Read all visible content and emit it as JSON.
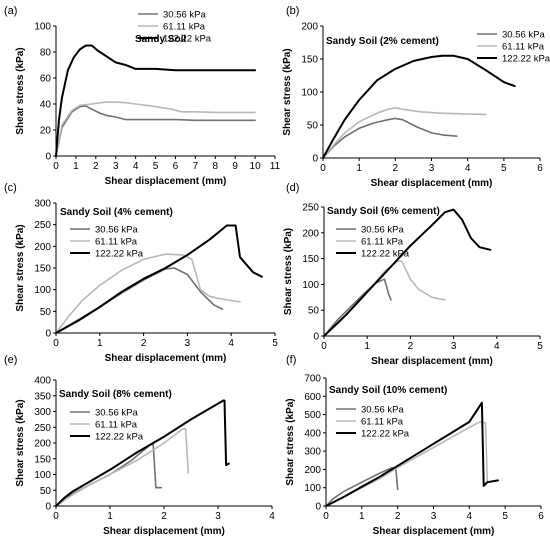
{
  "chart_data": [
    {
      "panel": "(a)",
      "type": "line",
      "title": "Sandy Soil",
      "xlabel": "Shear displacement (mm)",
      "ylabel": "Shear stress (kPa)",
      "xlim": [
        0,
        11
      ],
      "ylim": [
        0,
        100
      ],
      "xticks": [
        0,
        1,
        2,
        3,
        4,
        5,
        6,
        7,
        8,
        9,
        10,
        11
      ],
      "yticks": [
        0,
        20,
        40,
        60,
        80,
        100
      ],
      "legend_position": "top-right",
      "series": [
        {
          "name": "30.56 kPa",
          "color": "#707070",
          "x": [
            0,
            0.3,
            0.8,
            1.2,
            1.5,
            1.8,
            2.2,
            2.6,
            3,
            3.5,
            4,
            5,
            6,
            7,
            8,
            9,
            10
          ],
          "y": [
            0,
            22,
            34,
            38,
            38.5,
            36,
            33,
            31,
            30,
            28,
            28,
            28,
            28,
            27.5,
            27.5,
            27.5,
            27.5
          ]
        },
        {
          "name": "61.11 kPa",
          "color": "#b8b8b8",
          "x": [
            0,
            0.3,
            0.8,
            1.2,
            1.8,
            2.5,
            3,
            3.5,
            4,
            5,
            5.8,
            6.3,
            7,
            8,
            9,
            10
          ],
          "y": [
            0,
            24,
            35,
            39,
            40,
            41.5,
            41.5,
            41,
            40,
            38,
            36,
            34,
            34,
            33.5,
            33.5,
            33.5
          ]
        },
        {
          "name": "122.22 kPa",
          "color": "#000000",
          "x": [
            0,
            0.15,
            0.3,
            0.6,
            0.9,
            1.2,
            1.5,
            1.8,
            2.1,
            2.5,
            3,
            3.5,
            4,
            5,
            6,
            7,
            8,
            9,
            10
          ],
          "y": [
            0,
            28,
            45,
            66,
            76,
            82,
            85,
            85,
            81,
            77,
            72,
            70,
            67,
            67,
            66,
            66,
            66,
            66,
            66
          ]
        }
      ]
    },
    {
      "panel": "(b)",
      "type": "line",
      "title": "Sandy Soil  (2% cement)",
      "xlabel": "Shear displacement (mm)",
      "ylabel": "Shear stress (kPa)",
      "xlim": [
        0,
        6
      ],
      "ylim": [
        0,
        200
      ],
      "xticks": [
        0,
        1,
        2,
        3,
        4,
        5,
        6
      ],
      "yticks": [
        0,
        50,
        100,
        150,
        200
      ],
      "legend_position": "top-right",
      "series": [
        {
          "name": "30.56 kPa",
          "color": "#707070",
          "x": [
            0,
            0.3,
            0.6,
            1,
            1.4,
            1.8,
            2,
            2.2,
            2.6,
            3,
            3.3,
            3.7
          ],
          "y": [
            0,
            18,
            32,
            45,
            53,
            58,
            60,
            58,
            47,
            38,
            35,
            33
          ]
        },
        {
          "name": "61.11 kPa",
          "color": "#b8b8b8",
          "x": [
            0,
            0.3,
            0.6,
            1,
            1.5,
            1.8,
            2,
            2.3,
            2.7,
            3.2,
            3.8,
            4.5
          ],
          "y": [
            0,
            20,
            38,
            55,
            68,
            74,
            76,
            73,
            70,
            68,
            67,
            66
          ]
        },
        {
          "name": "122.22 kPa",
          "color": "#000000",
          "x": [
            0,
            0.3,
            0.6,
            1,
            1.5,
            2,
            2.5,
            3,
            3.3,
            3.6,
            4,
            4.5,
            5,
            5.3
          ],
          "y": [
            0,
            30,
            58,
            88,
            118,
            135,
            147,
            153,
            155,
            155,
            150,
            133,
            115,
            109
          ]
        }
      ]
    },
    {
      "panel": "(c)",
      "type": "line",
      "title": "Sandy Soil  (4% cement)",
      "xlabel": "Shear displacement (mm)",
      "ylabel": "Shear stress (kPa)",
      "xlim": [
        0,
        5
      ],
      "ylim": [
        0,
        300
      ],
      "xticks": [
        0,
        1,
        2,
        3,
        4,
        5
      ],
      "yticks": [
        0,
        50,
        100,
        150,
        200,
        250,
        300
      ],
      "legend_position": "top-left",
      "series": [
        {
          "name": "30.56 kPa",
          "color": "#707070",
          "x": [
            0,
            0.5,
            1,
            1.5,
            2,
            2.5,
            2.7,
            3,
            3.3,
            3.6,
            3.8
          ],
          "y": [
            0,
            30,
            60,
            92,
            122,
            148,
            150,
            135,
            95,
            65,
            55
          ]
        },
        {
          "name": "61.11 kPa",
          "color": "#b8b8b8",
          "x": [
            0,
            0.3,
            0.6,
            1,
            1.5,
            2,
            2.5,
            2.9,
            3.1,
            3.3,
            3.5,
            3.7,
            4,
            4.2
          ],
          "y": [
            0,
            40,
            75,
            110,
            145,
            170,
            182,
            180,
            170,
            100,
            85,
            80,
            75,
            72
          ]
        },
        {
          "name": "122.22 kPa",
          "color": "#000000",
          "x": [
            0,
            0.5,
            1,
            1.5,
            2,
            2.5,
            3,
            3.5,
            3.9,
            4.1,
            4.2,
            4.5,
            4.7
          ],
          "y": [
            0,
            28,
            60,
            95,
            125,
            150,
            180,
            215,
            248,
            248,
            175,
            140,
            130
          ]
        }
      ]
    },
    {
      "panel": "(d)",
      "type": "line",
      "title": "Sandy Soil  (6% cement)",
      "xlabel": "Shear displacement (mm)",
      "ylabel": "Shear stress (kPa)",
      "xlim": [
        0,
        5
      ],
      "ylim": [
        0,
        250
      ],
      "xticks": [
        0,
        1,
        2,
        3,
        4,
        5
      ],
      "yticks": [
        0,
        50,
        100,
        150,
        200,
        250
      ],
      "legend_position": "top-left",
      "series": [
        {
          "name": "30.56 kPa",
          "color": "#707070",
          "x": [
            0,
            0.3,
            0.6,
            0.9,
            1.2,
            1.4,
            1.5,
            1.55
          ],
          "y": [
            0,
            30,
            55,
            80,
            103,
            110,
            80,
            70
          ]
        },
        {
          "name": "61.11 kPa",
          "color": "#b8b8b8",
          "x": [
            0,
            0.5,
            1,
            1.4,
            1.7,
            1.8,
            2,
            2.2,
            2.5,
            2.8
          ],
          "y": [
            0,
            40,
            85,
            125,
            145,
            145,
            110,
            90,
            75,
            70
          ]
        },
        {
          "name": "122.22 kPa",
          "color": "#000000",
          "x": [
            0,
            0.5,
            1,
            1.5,
            2,
            2.5,
            2.8,
            3,
            3.2,
            3.4,
            3.6,
            3.85
          ],
          "y": [
            0,
            40,
            85,
            130,
            175,
            215,
            240,
            245,
            225,
            190,
            172,
            167
          ]
        }
      ]
    },
    {
      "panel": "(e)",
      "type": "line",
      "title": "Sandy Soil  (8% cement)",
      "xlabel": "Shear displacement (mm)",
      "ylabel": "Shear stress (kPa)",
      "xlim": [
        0,
        4
      ],
      "ylim": [
        0,
        400
      ],
      "xticks": [
        0,
        1,
        2,
        3,
        4
      ],
      "yticks": [
        0,
        50,
        100,
        150,
        200,
        250,
        300,
        350,
        400
      ],
      "legend_position": "top-left",
      "series": [
        {
          "name": "30.56 kPa",
          "color": "#707070",
          "x": [
            0,
            0.3,
            0.6,
            1,
            1.4,
            1.75,
            1.8,
            1.85,
            1.95
          ],
          "y": [
            0,
            38,
            65,
            100,
            145,
            195,
            195,
            58,
            58
          ]
        },
        {
          "name": "61.11 kPa",
          "color": "#b8b8b8",
          "x": [
            0,
            0.3,
            0.6,
            1,
            1.5,
            2,
            2.35,
            2.4,
            2.45
          ],
          "y": [
            0,
            35,
            65,
            100,
            145,
            200,
            245,
            245,
            105
          ]
        },
        {
          "name": "122.22 kPa",
          "color": "#000000",
          "x": [
            0,
            0.15,
            0.3,
            0.6,
            1,
            1.5,
            2,
            2.5,
            3,
            3.1,
            3.12,
            3.15,
            3.2
          ],
          "y": [
            0,
            25,
            45,
            75,
            115,
            170,
            220,
            275,
            325,
            335,
            335,
            130,
            135
          ]
        }
      ]
    },
    {
      "panel": "(f)",
      "type": "line",
      "title": "Sandy Soil  (10% cement)",
      "xlabel": "Shear displacement (mm)",
      "ylabel": "Shear stress (kPa)",
      "xlim": [
        0,
        6
      ],
      "ylim": [
        0,
        700
      ],
      "xticks": [
        0,
        1,
        2,
        3,
        4,
        5,
        6
      ],
      "yticks": [
        0,
        100,
        200,
        300,
        400,
        500,
        600,
        700
      ],
      "legend_position": "top-left",
      "series": [
        {
          "name": "30.56 kPa",
          "color": "#707070",
          "x": [
            0,
            0.2,
            0.5,
            1,
            1.5,
            1.85,
            1.95,
            2
          ],
          "y": [
            0,
            40,
            80,
            130,
            180,
            210,
            200,
            90
          ]
        },
        {
          "name": "61.11 kPa",
          "color": "#b8b8b8",
          "x": [
            0,
            0.5,
            1,
            1.5,
            2,
            2.5,
            3,
            3.5,
            4,
            4.3,
            4.45,
            4.5
          ],
          "y": [
            0,
            50,
            100,
            150,
            210,
            265,
            320,
            375,
            430,
            460,
            455,
            130
          ]
        },
        {
          "name": "122.22 kPa",
          "color": "#000000",
          "x": [
            0,
            0.5,
            1,
            1.5,
            2,
            2.5,
            3,
            3.5,
            4,
            4.35,
            4.4,
            4.5,
            4.8
          ],
          "y": [
            0,
            50,
            105,
            160,
            220,
            280,
            340,
            400,
            460,
            565,
            110,
            130,
            140
          ]
        }
      ]
    }
  ]
}
